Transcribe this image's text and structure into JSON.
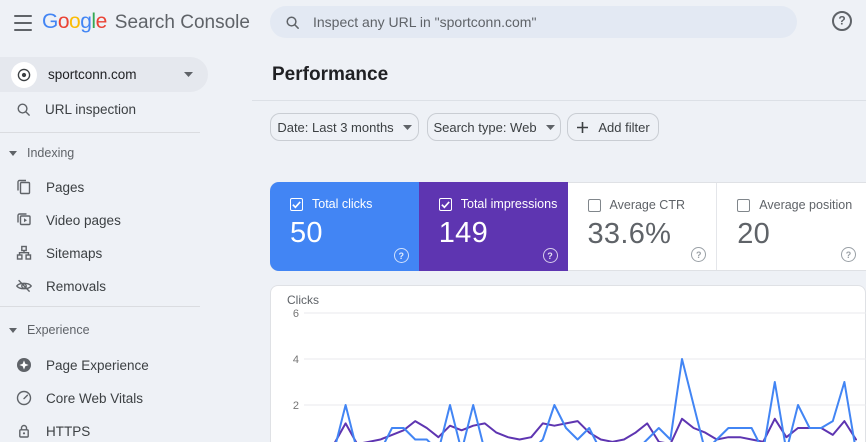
{
  "header": {
    "brand": "Google",
    "brand_letter_colors": [
      "#4285F4",
      "#EA4335",
      "#FBBC05",
      "#4285F4",
      "#34A853",
      "#EA4335"
    ],
    "product": "Search Console",
    "search_placeholder": "Inspect any URL in \"sportconn.com\""
  },
  "sidebar": {
    "property": "sportconn.com",
    "url_inspection_label": "URL inspection",
    "sections": [
      {
        "label": "Indexing",
        "items": [
          {
            "label": "Pages",
            "icon": "pages-icon"
          },
          {
            "label": "Video pages",
            "icon": "video-pages-icon"
          },
          {
            "label": "Sitemaps",
            "icon": "sitemaps-icon"
          },
          {
            "label": "Removals",
            "icon": "removals-icon"
          }
        ]
      },
      {
        "label": "Experience",
        "items": [
          {
            "label": "Page Experience",
            "icon": "page-experience-icon"
          },
          {
            "label": "Core Web Vitals",
            "icon": "core-web-vitals-icon"
          },
          {
            "label": "HTTPS",
            "icon": "https-lock-icon"
          }
        ]
      }
    ]
  },
  "main": {
    "title": "Performance",
    "filters": {
      "date": "Date: Last 3 months",
      "search_type": "Search type: Web",
      "add_filter": "Add filter"
    },
    "cards": [
      {
        "label": "Total clicks",
        "value": "50",
        "checked": true,
        "color": "#4285f4"
      },
      {
        "label": "Total impressions",
        "value": "149",
        "checked": true,
        "color": "#5e35b1"
      },
      {
        "label": "Average CTR",
        "value": "33.6%",
        "checked": false
      },
      {
        "label": "Average position",
        "value": "20",
        "checked": false
      }
    ]
  },
  "chart_data": {
    "type": "line",
    "title": "Clicks",
    "ylabel": "Clicks",
    "ylim": [
      0,
      6
    ],
    "yticks": [
      6,
      4,
      2
    ],
    "grid": true,
    "legend": "none",
    "x_axis": {
      "labels_visible": false,
      "points": 46,
      "note": "daily points over last 3 months, date labels cropped below view"
    },
    "series": [
      {
        "name": "Total clicks",
        "color": "#4285f4",
        "values": [
          0,
          2,
          0,
          0,
          0,
          1,
          1,
          0.5,
          0.5,
          0,
          2,
          0,
          2,
          0,
          0,
          0,
          0,
          0,
          0.5,
          2,
          1,
          0.5,
          1,
          0,
          0,
          0,
          0,
          0.5,
          1,
          0.5,
          4,
          2,
          0,
          0.5,
          1,
          1,
          1,
          0,
          3,
          0,
          2,
          1,
          1,
          1.3,
          3,
          0
        ]
      },
      {
        "name": "Total impressions (overlaid)",
        "color": "#5e35b1",
        "values": [
          0.3,
          1.2,
          0.3,
          0.4,
          0.5,
          0.7,
          0.9,
          1.3,
          1.0,
          0.6,
          1.1,
          0.9,
          1.1,
          1.2,
          0.8,
          0.6,
          0.5,
          0.6,
          1.2,
          1.1,
          1.2,
          1.3,
          0.8,
          0.5,
          0.4,
          0.5,
          0.8,
          1.2,
          0.4,
          0.3,
          1.4,
          1.0,
          0.8,
          0.5,
          0.6,
          0.6,
          0.5,
          0.4,
          1.4,
          0.6,
          1.0,
          1.0,
          1.0,
          0.7,
          1.3,
          0.5
        ]
      }
    ]
  }
}
